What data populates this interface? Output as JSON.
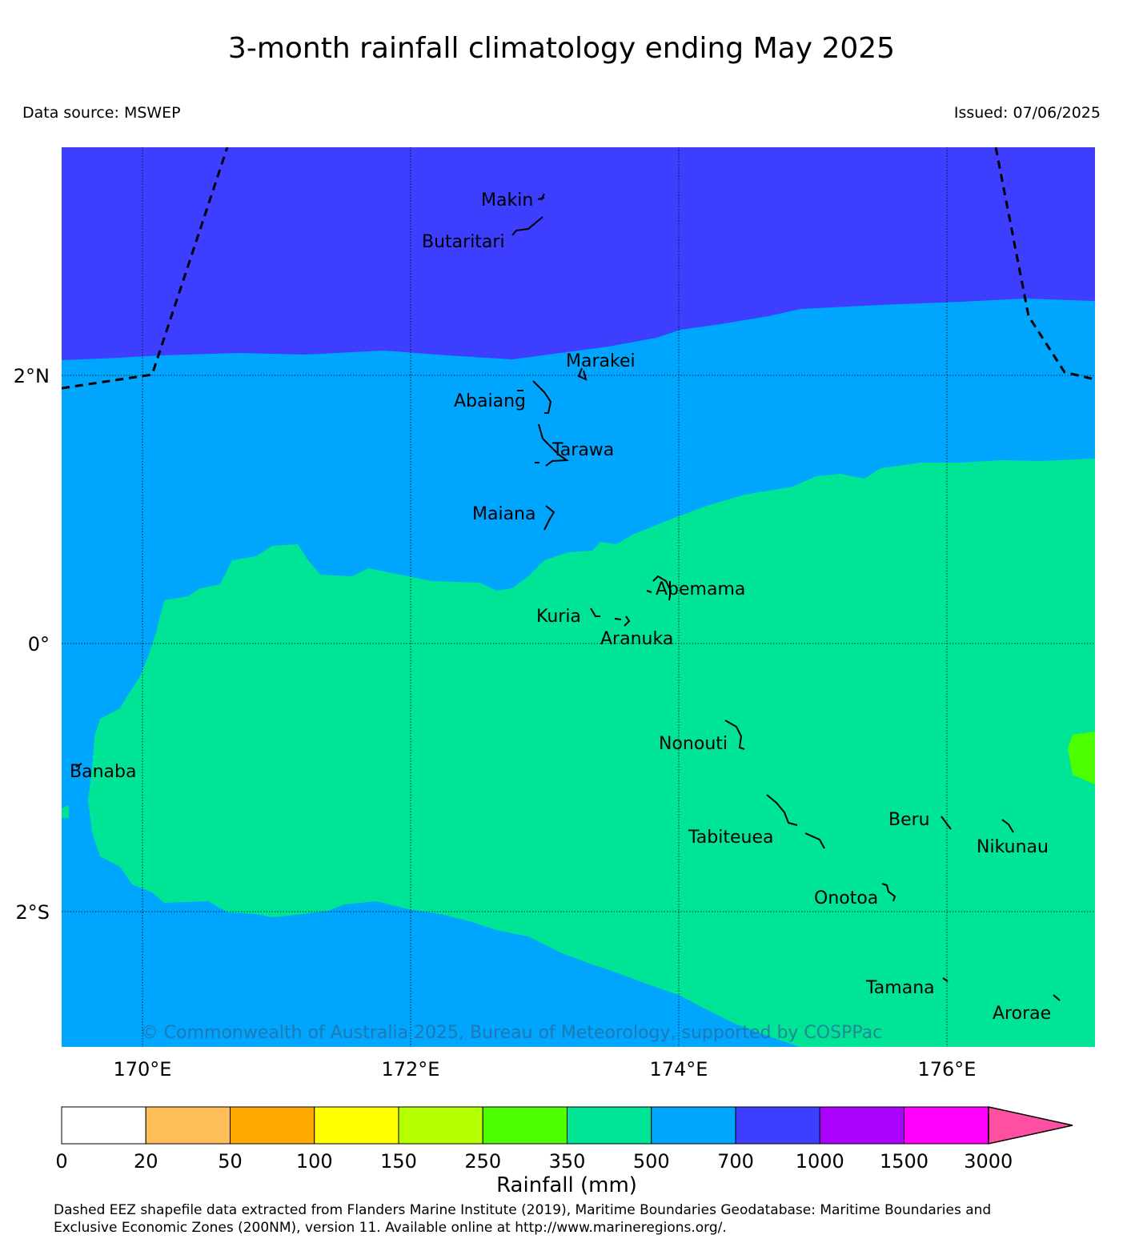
{
  "title": "3-month rainfall climatology ending May 2025",
  "data_source": "Data source: MSWEP",
  "issued": "Issued: 07/06/2025",
  "map": {
    "lat_labels": [
      "2°N",
      "0°",
      "2°S"
    ],
    "lon_labels": [
      "170°E",
      "172°E",
      "174°E",
      "176°E"
    ],
    "copyright": "© Commonwealth of Australia 2025, Bureau of Meteorology, supported by COSPPac",
    "islands": [
      "Makin",
      "Butaritari",
      "Marakei",
      "Abaiang",
      "Tarawa",
      "Maiana",
      "Abemama",
      "Kuria",
      "Aranuka",
      "Nonouti",
      "Banaba",
      "Tabiteuea",
      "Beru",
      "Nikunau",
      "Onotoa",
      "Tamana",
      "Arorae"
    ],
    "region_colors": {
      "700-1000": "#3e3efe",
      "500-700": "#00a5fe",
      "350-500": "#00e496",
      "250-350": "#4cfe00"
    }
  },
  "colorbar": {
    "label": "Rainfall (mm)",
    "ticks": [
      "0",
      "20",
      "50",
      "100",
      "150",
      "250",
      "350",
      "500",
      "700",
      "1000",
      "1500",
      "3000"
    ],
    "colors": [
      "#ffffff",
      "#ffbe5a",
      "#ffaa00",
      "#ffff00",
      "#b4ff00",
      "#4cfe00",
      "#00e496",
      "#00a5fe",
      "#3e3efe",
      "#aa00fe",
      "#ff00ff",
      "#ff4fa0"
    ]
  },
  "footer": {
    "line1": "Dashed EEZ shapefile data extracted from Flanders Marine Institute (2019), Maritime Boundaries Geodatabase: Maritime Boundaries and",
    "line2": "Exclusive Economic Zones (200NM), version 11. Available online at http://www.marineregions.org/."
  }
}
